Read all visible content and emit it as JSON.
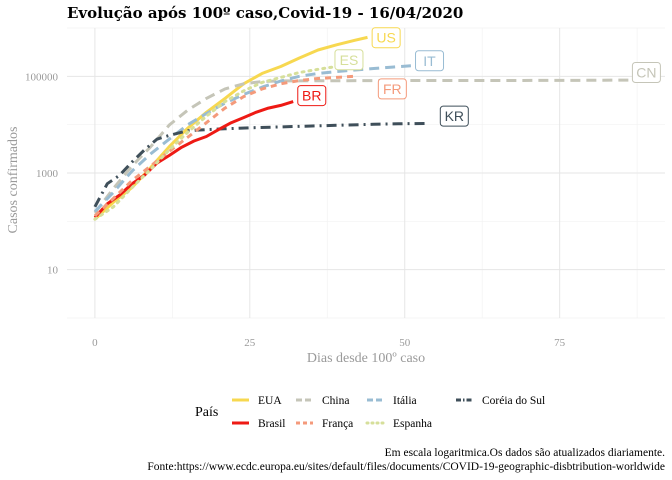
{
  "chart_data": {
    "type": "line",
    "title": "Evolução após 100º caso,Covid-19 -  16/04/2020",
    "xlabel": "Dias desde 100º caso",
    "ylabel": "Casos confirmados",
    "x_ticks": [
      0,
      25,
      50,
      75
    ],
    "x_tick_labels": [
      "0",
      "25",
      "50",
      "75"
    ],
    "xlim": [
      -4.5,
      92
    ],
    "y_scale": "log10",
    "y_ticks": [
      10,
      1000,
      100000
    ],
    "y_tick_labels": [
      "10",
      "1000",
      "100000"
    ],
    "ylim": [
      1,
      1000000
    ],
    "grid": true,
    "legend_title": "País",
    "legend_position": "bottom",
    "caption": [
      "Em escala logaritmica.Os dados são atualizados diariamente.",
      "Fonte:https://www.ecdc.europa.eu/sites/default/files/documents/COVID-19-geographic-disbtribution-worldwide"
    ],
    "series": [
      {
        "name": "EUA",
        "label": "US",
        "color": "#f7d850",
        "dash": "solid",
        "width": 3,
        "x": [
          0,
          3,
          6,
          9,
          12,
          15,
          18,
          21,
          24,
          27,
          30,
          33,
          36,
          39,
          42,
          44
        ],
        "y": [
          110,
          250,
          500,
          1300,
          3500,
          8500,
          18000,
          35000,
          70000,
          115000,
          160000,
          240000,
          350000,
          450000,
          560000,
          640000
        ],
        "label_xy": [
          47,
          630000
        ]
      },
      {
        "name": "China",
        "label": "CN",
        "color": "#c5c5b8",
        "dash": "longdash",
        "width": 3,
        "x": [
          0,
          3,
          6,
          9,
          12,
          15,
          18,
          21,
          24,
          27,
          30,
          35,
          45,
          60,
          75,
          87
        ],
        "y": [
          150,
          480,
          1400,
          3500,
          9800,
          20000,
          35000,
          55000,
          70000,
          78000,
          80500,
          81000,
          81500,
          82000,
          82500,
          83500
        ],
        "label_xy": [
          89,
          120000
        ]
      },
      {
        "name": "Itália",
        "label": "IT",
        "color": "#99bcd3",
        "dash": "longdash",
        "width": 3,
        "x": [
          0,
          3,
          6,
          9,
          12,
          15,
          18,
          21,
          24,
          27,
          30,
          33,
          36,
          39,
          42,
          45,
          48,
          51
        ],
        "y": [
          160,
          400,
          1100,
          2500,
          5000,
          10000,
          17000,
          28000,
          42000,
          60000,
          80000,
          100000,
          115000,
          125000,
          135000,
          145000,
          155000,
          165000
        ],
        "label_xy": [
          54,
          210000
        ]
      },
      {
        "name": "Coréia do Sul",
        "label": "KR",
        "color": "#3f4f5a",
        "dash": "dashdot",
        "width": 3,
        "x": [
          0,
          2,
          4,
          6,
          8,
          10,
          12,
          15,
          18,
          21,
          25,
          30,
          35,
          40,
          45,
          49,
          54
        ],
        "y": [
          200,
          600,
          900,
          1700,
          3000,
          5000,
          6000,
          7500,
          7900,
          8200,
          8600,
          9000,
          9400,
          9800,
          10200,
          10400,
          10600
        ],
        "label_xy": [
          58,
          15000
        ]
      },
      {
        "name": "Brasil",
        "label": "BR",
        "color": "#ee1a14",
        "dash": "solid",
        "width": 3,
        "x": [
          0,
          2,
          4,
          6,
          8,
          10,
          12,
          14,
          16,
          18,
          20,
          22,
          24,
          26,
          28,
          30,
          32
        ],
        "y": [
          120,
          230,
          350,
          600,
          900,
          1600,
          2300,
          3400,
          4600,
          5700,
          8000,
          11000,
          14000,
          18000,
          22000,
          25000,
          30000
        ],
        "label_xy": [
          35,
          40000
        ]
      },
      {
        "name": "França",
        "label": "FR",
        "color": "#f49a7b",
        "dash": "dashed",
        "width": 3,
        "x": [
          0,
          3,
          6,
          9,
          12,
          15,
          18,
          21,
          24,
          27,
          30,
          33,
          36,
          39,
          42
        ],
        "y": [
          130,
          300,
          700,
          1400,
          2800,
          5500,
          11000,
          22000,
          38000,
          55000,
          70000,
          82000,
          90000,
          95000,
          100000
        ],
        "label_xy": [
          48,
          55000
        ]
      },
      {
        "name": "Espanha",
        "label": "ES",
        "color": "#d6df9a",
        "dash": "dotted",
        "width": 3,
        "x": [
          0,
          3,
          6,
          9,
          12,
          15,
          18,
          21,
          24,
          27,
          30,
          33,
          36,
          39,
          42
        ],
        "y": [
          110,
          200,
          500,
          1200,
          3000,
          7000,
          15000,
          30000,
          50000,
          75000,
          95000,
          120000,
          140000,
          160000,
          175000
        ],
        "label_xy": [
          41,
          220000
        ]
      }
    ],
    "legend_rows": [
      [
        "EUA",
        "China",
        "Itália",
        "Coréia do Sul"
      ],
      [
        "Brasil",
        "França",
        "Espanha"
      ]
    ]
  }
}
